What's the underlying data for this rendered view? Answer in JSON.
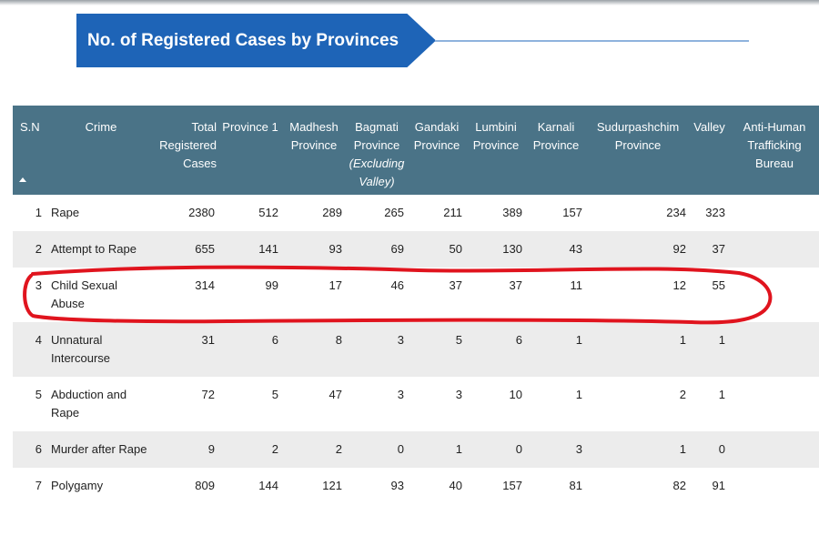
{
  "title": "No. of Registered Cases by Provinces",
  "table": {
    "headers": {
      "sn": "S.N",
      "crime": "Crime",
      "total": "Total Registered Cases",
      "province1": "Province 1",
      "madhesh": "Madhesh Province",
      "bagmati": "Bagmati Province",
      "bagmati_note": "(Excluding Valley)",
      "gandaki": "Gandaki Province",
      "lumbini": "Lumbini Province",
      "karnali": "Karnali Province",
      "sudurpashchim": "Sudurpashchim Province",
      "valley": "Valley",
      "anti": "Anti-Human Trafficking Bureau"
    },
    "rows": [
      {
        "sn": "1",
        "crime": "Rape",
        "total": "2380",
        "province1": "512",
        "madhesh": "289",
        "bagmati": "265",
        "gandaki": "211",
        "lumbini": "389",
        "karnali": "157",
        "sudurpashchim": "234",
        "valley": "323",
        "anti": ""
      },
      {
        "sn": "2",
        "crime": "Attempt to Rape",
        "total": "655",
        "province1": "141",
        "madhesh": "93",
        "bagmati": "69",
        "gandaki": "50",
        "lumbini": "130",
        "karnali": "43",
        "sudurpashchim": "92",
        "valley": "37",
        "anti": ""
      },
      {
        "sn": "3",
        "crime": "Child Sexual Abuse",
        "total": "314",
        "province1": "99",
        "madhesh": "17",
        "bagmati": "46",
        "gandaki": "37",
        "lumbini": "37",
        "karnali": "11",
        "sudurpashchim": "12",
        "valley": "55",
        "anti": ""
      },
      {
        "sn": "4",
        "crime": "Unnatural Intercourse",
        "total": "31",
        "province1": "6",
        "madhesh": "8",
        "bagmati": "3",
        "gandaki": "5",
        "lumbini": "6",
        "karnali": "1",
        "sudurpashchim": "1",
        "valley": "1",
        "anti": ""
      },
      {
        "sn": "5",
        "crime": "Abduction and Rape",
        "total": "72",
        "province1": "5",
        "madhesh": "47",
        "bagmati": "3",
        "gandaki": "3",
        "lumbini": "10",
        "karnali": "1",
        "sudurpashchim": "2",
        "valley": "1",
        "anti": ""
      },
      {
        "sn": "6",
        "crime": "Murder after Rape",
        "total": "9",
        "province1": "2",
        "madhesh": "2",
        "bagmati": "0",
        "gandaki": "1",
        "lumbini": "0",
        "karnali": "3",
        "sudurpashchim": "1",
        "valley": "0",
        "anti": ""
      },
      {
        "sn": "7",
        "crime": "Polygamy",
        "total": "809",
        "province1": "144",
        "madhesh": "121",
        "bagmati": "93",
        "gandaki": "40",
        "lumbini": "157",
        "karnali": "81",
        "sudurpashchim": "82",
        "valley": "91",
        "anti": ""
      }
    ]
  },
  "annotation": {
    "highlighted_row": "3",
    "color": "#e0141e"
  },
  "colors": {
    "banner": "#1e64b7",
    "header": "#4a7387",
    "stripe": "#ececec"
  }
}
